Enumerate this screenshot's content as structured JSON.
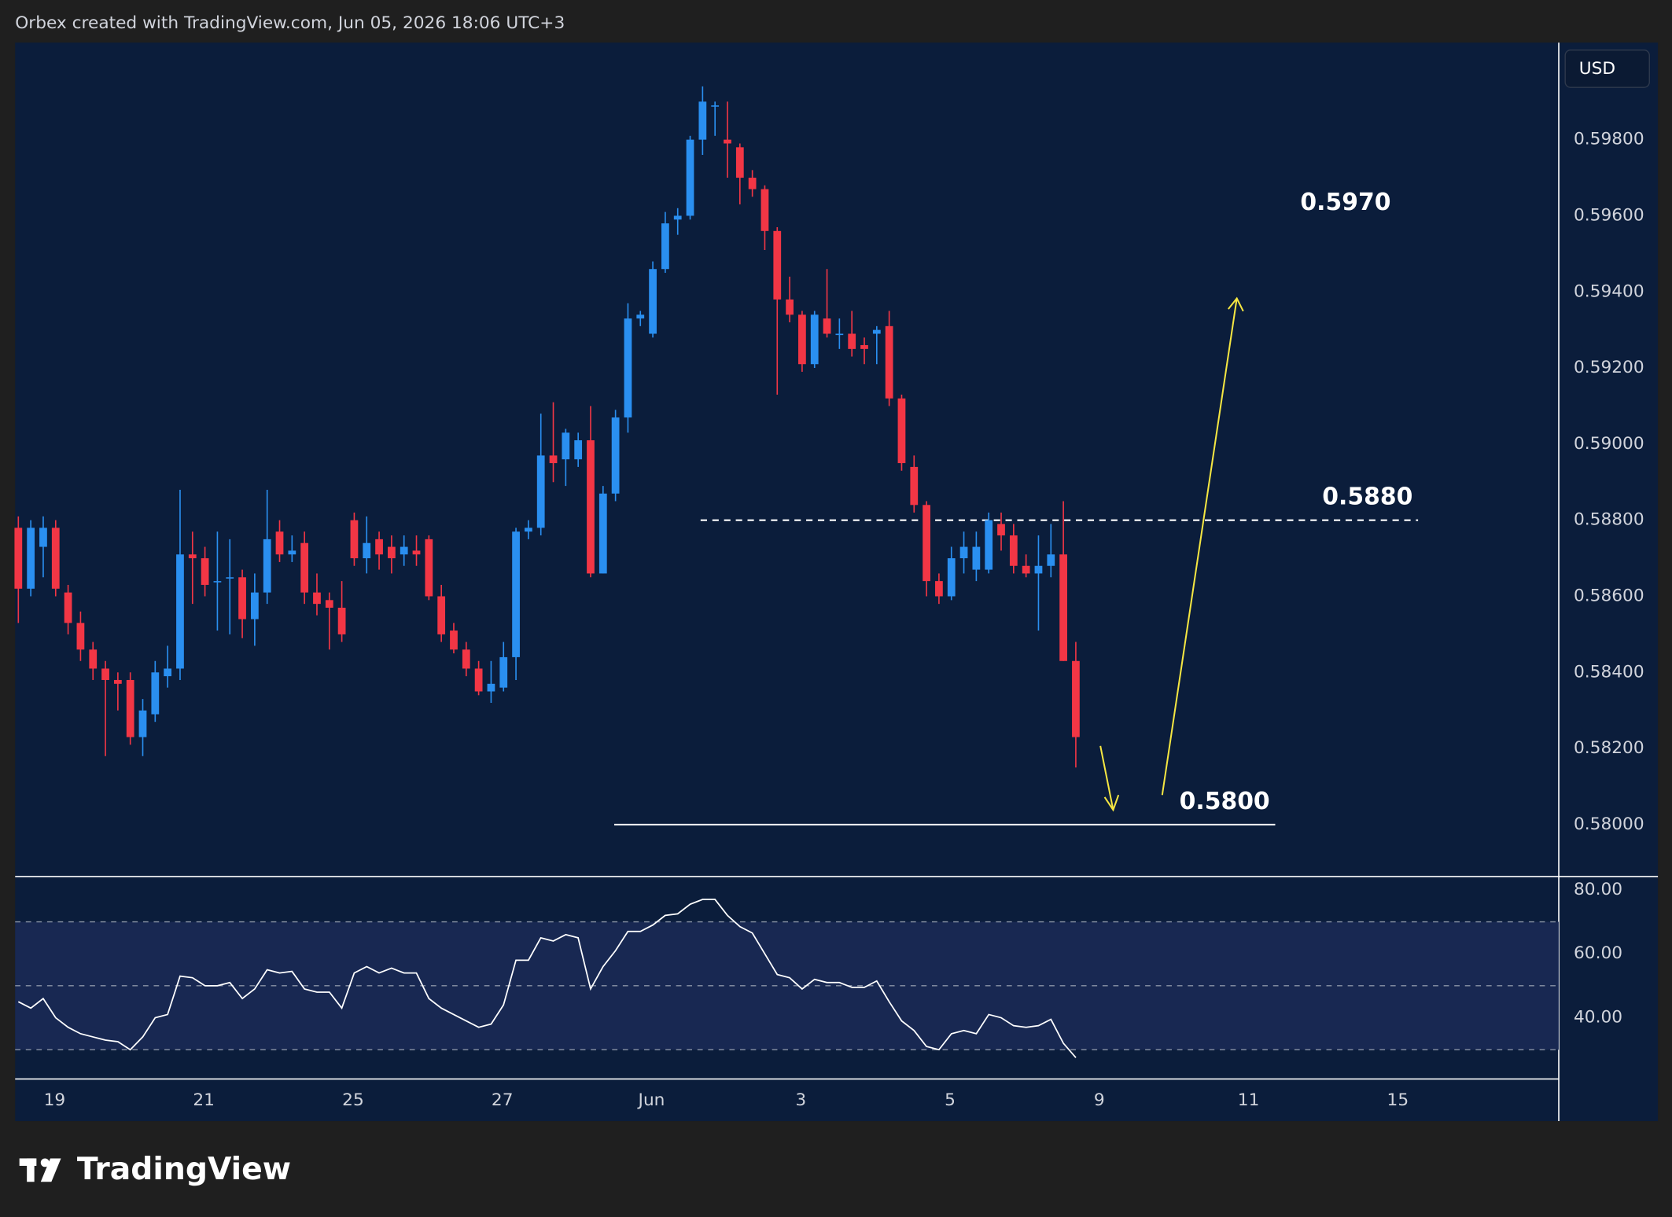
{
  "header": "Orbex created with TradingView.com, Jun 05, 2026 18:06 UTC+3",
  "brand": "TradingView",
  "chart_data": {
    "type": "candlestick",
    "currency": "USD",
    "up_color": "#2a8ff0",
    "down_color": "#f23645",
    "x_labels": [
      "19",
      "21",
      "25",
      "27",
      "Jun",
      "3",
      "5",
      "9",
      "11",
      "15"
    ],
    "ylim": [
      0.57865,
      0.60055
    ],
    "yticks": [
      {
        "value": 0.58,
        "label": "0.58000"
      },
      {
        "value": 0.582,
        "label": "0.58200"
      },
      {
        "value": 0.584,
        "label": "0.58400"
      },
      {
        "value": 0.586,
        "label": "0.58600"
      },
      {
        "value": 0.588,
        "label": "0.58800"
      },
      {
        "value": 0.59,
        "label": "0.59000"
      },
      {
        "value": 0.592,
        "label": "0.59200"
      },
      {
        "value": 0.594,
        "label": "0.59400"
      },
      {
        "value": 0.596,
        "label": "0.59600"
      },
      {
        "value": 0.598,
        "label": "0.59800"
      }
    ],
    "ohlc": [
      [
        0.5878,
        0.5881,
        0.5853,
        0.5862
      ],
      [
        0.5862,
        0.588,
        0.586,
        0.5878
      ],
      [
        0.5873,
        0.5881,
        0.5865,
        0.5878
      ],
      [
        0.5878,
        0.588,
        0.586,
        0.5862
      ],
      [
        0.5861,
        0.5863,
        0.585,
        0.5853
      ],
      [
        0.5853,
        0.5856,
        0.5843,
        0.5846
      ],
      [
        0.5846,
        0.5848,
        0.5838,
        0.5841
      ],
      [
        0.5841,
        0.5843,
        0.5818,
        0.5838
      ],
      [
        0.5838,
        0.584,
        0.583,
        0.5837
      ],
      [
        0.5838,
        0.584,
        0.5821,
        0.5823
      ],
      [
        0.5823,
        0.5833,
        0.5818,
        0.583
      ],
      [
        0.5829,
        0.5843,
        0.5827,
        0.584
      ],
      [
        0.5839,
        0.5847,
        0.5836,
        0.5841
      ],
      [
        0.5841,
        0.5888,
        0.5838,
        0.5871
      ],
      [
        0.5871,
        0.5877,
        0.5858,
        0.587
      ],
      [
        0.587,
        0.5873,
        0.586,
        0.5863
      ],
      [
        0.5864,
        0.5877,
        0.5851,
        0.5864
      ],
      [
        0.5865,
        0.5875,
        0.585,
        0.5865
      ],
      [
        0.5865,
        0.5867,
        0.5849,
        0.5854
      ],
      [
        0.5854,
        0.5866,
        0.5847,
        0.5861
      ],
      [
        0.5861,
        0.5888,
        0.5858,
        0.5875
      ],
      [
        0.5877,
        0.588,
        0.5869,
        0.5871
      ],
      [
        0.5871,
        0.5876,
        0.5869,
        0.5872
      ],
      [
        0.5874,
        0.5877,
        0.5858,
        0.5861
      ],
      [
        0.5861,
        0.5866,
        0.5855,
        0.5858
      ],
      [
        0.5859,
        0.5861,
        0.5846,
        0.5857
      ],
      [
        0.5857,
        0.5864,
        0.5848,
        0.585
      ],
      [
        0.588,
        0.5882,
        0.5868,
        0.587
      ],
      [
        0.587,
        0.5881,
        0.5866,
        0.5874
      ],
      [
        0.5875,
        0.5877,
        0.5867,
        0.5871
      ],
      [
        0.5873,
        0.5876,
        0.5866,
        0.587
      ],
      [
        0.5871,
        0.5876,
        0.5868,
        0.5873
      ],
      [
        0.5872,
        0.5876,
        0.5868,
        0.5871
      ],
      [
        0.5875,
        0.5876,
        0.5859,
        0.586
      ],
      [
        0.586,
        0.5863,
        0.5848,
        0.585
      ],
      [
        0.5851,
        0.5853,
        0.5845,
        0.5846
      ],
      [
        0.5846,
        0.5848,
        0.5839,
        0.5841
      ],
      [
        0.5841,
        0.5843,
        0.5834,
        0.5835
      ],
      [
        0.5835,
        0.5843,
        0.5832,
        0.5837
      ],
      [
        0.5836,
        0.5848,
        0.5835,
        0.5844
      ],
      [
        0.5844,
        0.5878,
        0.5838,
        0.5877
      ],
      [
        0.5877,
        0.588,
        0.5875,
        0.5878
      ],
      [
        0.5878,
        0.5908,
        0.5876,
        0.5897
      ],
      [
        0.5897,
        0.5911,
        0.589,
        0.5895
      ],
      [
        0.5896,
        0.5904,
        0.5889,
        0.5903
      ],
      [
        0.5896,
        0.5903,
        0.5894,
        0.5901
      ],
      [
        0.5901,
        0.591,
        0.5865,
        0.5866
      ],
      [
        0.5866,
        0.5889,
        0.5866,
        0.5887
      ],
      [
        0.5887,
        0.5909,
        0.5885,
        0.5907
      ],
      [
        0.5907,
        0.5937,
        0.5903,
        0.5933
      ],
      [
        0.5933,
        0.5935,
        0.5931,
        0.5934
      ],
      [
        0.5929,
        0.5948,
        0.5928,
        0.5946
      ],
      [
        0.5946,
        0.5961,
        0.5945,
        0.5958
      ],
      [
        0.5959,
        0.5962,
        0.5955,
        0.596
      ],
      [
        0.596,
        0.5981,
        0.5959,
        0.598
      ],
      [
        0.598,
        0.5994,
        0.5976,
        0.599
      ],
      [
        0.5989,
        0.599,
        0.5981,
        0.5989
      ],
      [
        0.598,
        0.599,
        0.597,
        0.5979
      ],
      [
        0.5978,
        0.5979,
        0.5963,
        0.597
      ],
      [
        0.597,
        0.5972,
        0.5965,
        0.5967
      ],
      [
        0.5967,
        0.5968,
        0.5951,
        0.5956
      ],
      [
        0.5956,
        0.5957,
        0.5913,
        0.5938
      ],
      [
        0.5938,
        0.5944,
        0.5932,
        0.5934
      ],
      [
        0.5934,
        0.5935,
        0.5919,
        0.5921
      ],
      [
        0.5921,
        0.5935,
        0.592,
        0.5934
      ],
      [
        0.5933,
        0.5946,
        0.5928,
        0.5929
      ],
      [
        0.5929,
        0.5933,
        0.5925,
        0.5929
      ],
      [
        0.5929,
        0.5935,
        0.5923,
        0.5925
      ],
      [
        0.5926,
        0.5928,
        0.5921,
        0.5925
      ],
      [
        0.5929,
        0.5931,
        0.5921,
        0.593
      ],
      [
        0.5931,
        0.5935,
        0.591,
        0.5912
      ],
      [
        0.5912,
        0.5913,
        0.5893,
        0.5895
      ],
      [
        0.5894,
        0.5897,
        0.5882,
        0.5884
      ],
      [
        0.5884,
        0.5885,
        0.586,
        0.5864
      ],
      [
        0.5864,
        0.5866,
        0.5858,
        0.586
      ],
      [
        0.586,
        0.5873,
        0.5859,
        0.587
      ],
      [
        0.587,
        0.5877,
        0.5866,
        0.5873
      ],
      [
        0.5867,
        0.5877,
        0.5864,
        0.5873
      ],
      [
        0.5867,
        0.5882,
        0.5866,
        0.588
      ],
      [
        0.5879,
        0.5882,
        0.5872,
        0.5876
      ],
      [
        0.5876,
        0.5879,
        0.5866,
        0.5868
      ],
      [
        0.5868,
        0.5871,
        0.5865,
        0.5866
      ],
      [
        0.5866,
        0.5876,
        0.5851,
        0.5868
      ],
      [
        0.5868,
        0.5879,
        0.5865,
        0.5871
      ],
      [
        0.5871,
        0.5885,
        0.5843,
        0.5843
      ],
      [
        0.5843,
        0.5848,
        0.5815,
        0.5823
      ]
    ],
    "levels": [
      {
        "value": 0.588,
        "label": "0.5880",
        "style": "dashed"
      },
      {
        "value": 0.58,
        "label": "0.5800",
        "style": "solid"
      }
    ],
    "target": {
      "value": 0.597,
      "label": "0.5970"
    },
    "rsi": {
      "color": "#ffffff",
      "ylim": [
        21,
        84
      ],
      "yticks": [
        {
          "value": 40,
          "label": "40.00"
        },
        {
          "value": 60,
          "label": "60.00"
        },
        {
          "value": 80,
          "label": "80.00"
        }
      ],
      "levels": [
        30,
        50,
        70
      ],
      "values": [
        45,
        43,
        46,
        40,
        37,
        35,
        34,
        33,
        32.5,
        30,
        34,
        40,
        41,
        53,
        52.5,
        50,
        50,
        51,
        46,
        49,
        55,
        54,
        54.5,
        49,
        48,
        48,
        43,
        54,
        56,
        54,
        55.5,
        54,
        54,
        46,
        43,
        41,
        39,
        37,
        38,
        44,
        58,
        58,
        65,
        64,
        66,
        65,
        49,
        56,
        61,
        67,
        67,
        69,
        72,
        72.5,
        75.5,
        77,
        77,
        72,
        68.5,
        66.5,
        60,
        53.5,
        52.5,
        49,
        52,
        51,
        51,
        49.5,
        49.5,
        51.5,
        45,
        39,
        36,
        31,
        30,
        35,
        36,
        35,
        41,
        40,
        37.5,
        37,
        37.5,
        39.5,
        32,
        27.5
      ]
    }
  }
}
